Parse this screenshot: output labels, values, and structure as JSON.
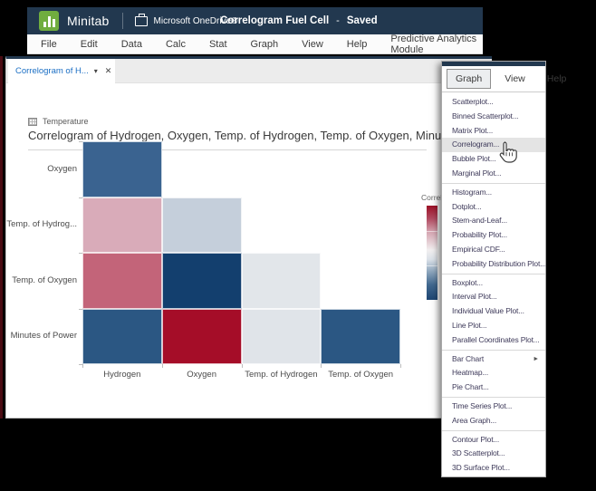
{
  "app": {
    "brand": "Minitab",
    "cloud_label": "Microsoft OneDrive®",
    "document_name": "Correlogram Fuel Cell",
    "title_dash": "-",
    "save_status": "Saved"
  },
  "menubar": {
    "items": [
      "File",
      "Edit",
      "Data",
      "Calc",
      "Stat",
      "Graph",
      "View",
      "Help",
      "Predictive Analytics Module"
    ]
  },
  "tab": {
    "label": "Correlogram of H...",
    "caret_icon": "▾",
    "close_icon": "✕"
  },
  "output_pane": {
    "dataset_label": "Temperature",
    "title": "Correlogram of Hydrogen, Oxygen, Temp. of Hydrogen, Temp. of Oxygen, Minutes of P"
  },
  "chart_data": {
    "type": "heatmap",
    "subtype": "correlogram-lower-triangle",
    "title": "Correlogram of Hydrogen, Oxygen, Temp. of Hydrogen, Temp. of Oxygen, Minutes of Power",
    "x_categories": [
      "Hydrogen",
      "Oxygen",
      "Temp. of Hydrogen",
      "Temp. of Oxygen"
    ],
    "y_categories": [
      "Oxygen",
      "Temp. of Hydrog...",
      "Temp. of Oxygen",
      "Minutes of Power"
    ],
    "grid": false,
    "legend": {
      "visible_title": "Correl",
      "position": "right",
      "scale_max": 1.0,
      "scale_min": -1.0,
      "max_color": "#9c1127",
      "mid_color": "#f2eff0",
      "min_color": "#1e4672"
    },
    "cells": [
      {
        "row": 0,
        "col": 0,
        "row_name": "Oxygen",
        "col_name": "Hydrogen",
        "value": -0.6,
        "color": "#3a6390"
      },
      {
        "row": 1,
        "col": 0,
        "row_name": "Temp. of Hydrogen",
        "col_name": "Hydrogen",
        "value": 0.3,
        "color": "#d9abb9"
      },
      {
        "row": 1,
        "col": 1,
        "row_name": "Temp. of Hydrogen",
        "col_name": "Oxygen",
        "value": -0.2,
        "color": "#c5cfdb"
      },
      {
        "row": 2,
        "col": 0,
        "row_name": "Temp. of Oxygen",
        "col_name": "Hydrogen",
        "value": 0.55,
        "color": "#c36479"
      },
      {
        "row": 2,
        "col": 1,
        "row_name": "Temp. of Oxygen",
        "col_name": "Oxygen",
        "value": -0.9,
        "color": "#133f6e"
      },
      {
        "row": 2,
        "col": 2,
        "row_name": "Temp. of Oxygen",
        "col_name": "Temp. of Hydrogen",
        "value": -0.05,
        "color": "#e2e6ea"
      },
      {
        "row": 3,
        "col": 0,
        "row_name": "Minutes of Power",
        "col_name": "Hydrogen",
        "value": -0.7,
        "color": "#2b5783"
      },
      {
        "row": 3,
        "col": 1,
        "row_name": "Minutes of Power",
        "col_name": "Oxygen",
        "value": 0.95,
        "color": "#a50d28"
      },
      {
        "row": 3,
        "col": 2,
        "row_name": "Minutes of Power",
        "col_name": "Temp. of Hydrogen",
        "value": -0.05,
        "color": "#e0e4e9"
      },
      {
        "row": 3,
        "col": 3,
        "row_name": "Minutes of Power",
        "col_name": "Temp. of Oxygen",
        "value": -0.7,
        "color": "#2b5783"
      }
    ]
  },
  "context_menu": {
    "tabs": [
      "Graph",
      "View",
      "Help"
    ],
    "active_tab": "Graph",
    "hovered_item": "Correlogram...",
    "submenu_arrow_icon": "►",
    "groups": [
      [
        "Scatterplot...",
        "Binned Scatterplot...",
        "Matrix Plot...",
        "Correlogram...",
        "Bubble Plot...",
        "Marginal Plot..."
      ],
      [
        "Histogram...",
        "Dotplot...",
        "Stem-and-Leaf...",
        "Probability Plot...",
        "Empirical CDF...",
        "Probability Distribution Plot..."
      ],
      [
        "Boxplot...",
        "Interval Plot...",
        "Individual Value Plot...",
        "Line Plot...",
        "Parallel Coordinates Plot..."
      ],
      [
        "Bar Chart",
        "Heatmap...",
        "Pie Chart..."
      ],
      [
        "Time Series Plot...",
        "Area Graph..."
      ],
      [
        "Contour Plot...",
        "3D Scatterplot...",
        "3D Surface Plot..."
      ]
    ],
    "items_with_submenu": [
      "Bar Chart"
    ]
  },
  "colors": {
    "titlebar": "#22384f",
    "brand_green": "#70ad3f",
    "tab_text_blue": "#1b6fc4",
    "menu_text": "#3e3a5a",
    "hover_bg": "#e4e4e4",
    "background": "#000000"
  }
}
